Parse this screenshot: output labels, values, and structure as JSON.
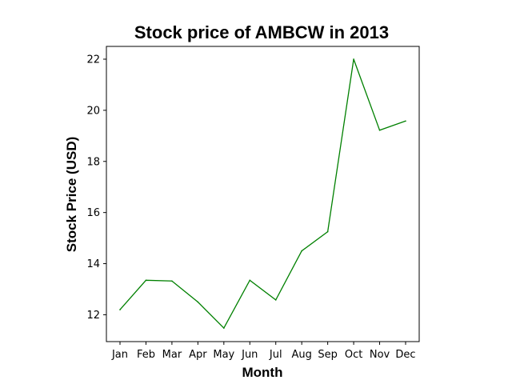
{
  "chart_data": {
    "type": "line",
    "title": "Stock price of AMBCW in 2013",
    "xlabel": "Month",
    "ylabel": "Stock Price (USD)",
    "categories": [
      "Jan",
      "Feb",
      "Mar",
      "Apr",
      "May",
      "Jun",
      "Jul",
      "Aug",
      "Sep",
      "Oct",
      "Nov",
      "Dec"
    ],
    "series": [
      {
        "values": [
          12.2,
          13.35,
          13.32,
          12.5,
          11.48,
          13.35,
          12.58,
          14.5,
          15.25,
          22.0,
          19.22,
          19.58
        ],
        "color": "#008000"
      }
    ],
    "ylim": [
      10.95,
      22.5
    ],
    "yticks": [
      12,
      14,
      16,
      18,
      20,
      22
    ],
    "grid": false,
    "legend": "none"
  }
}
